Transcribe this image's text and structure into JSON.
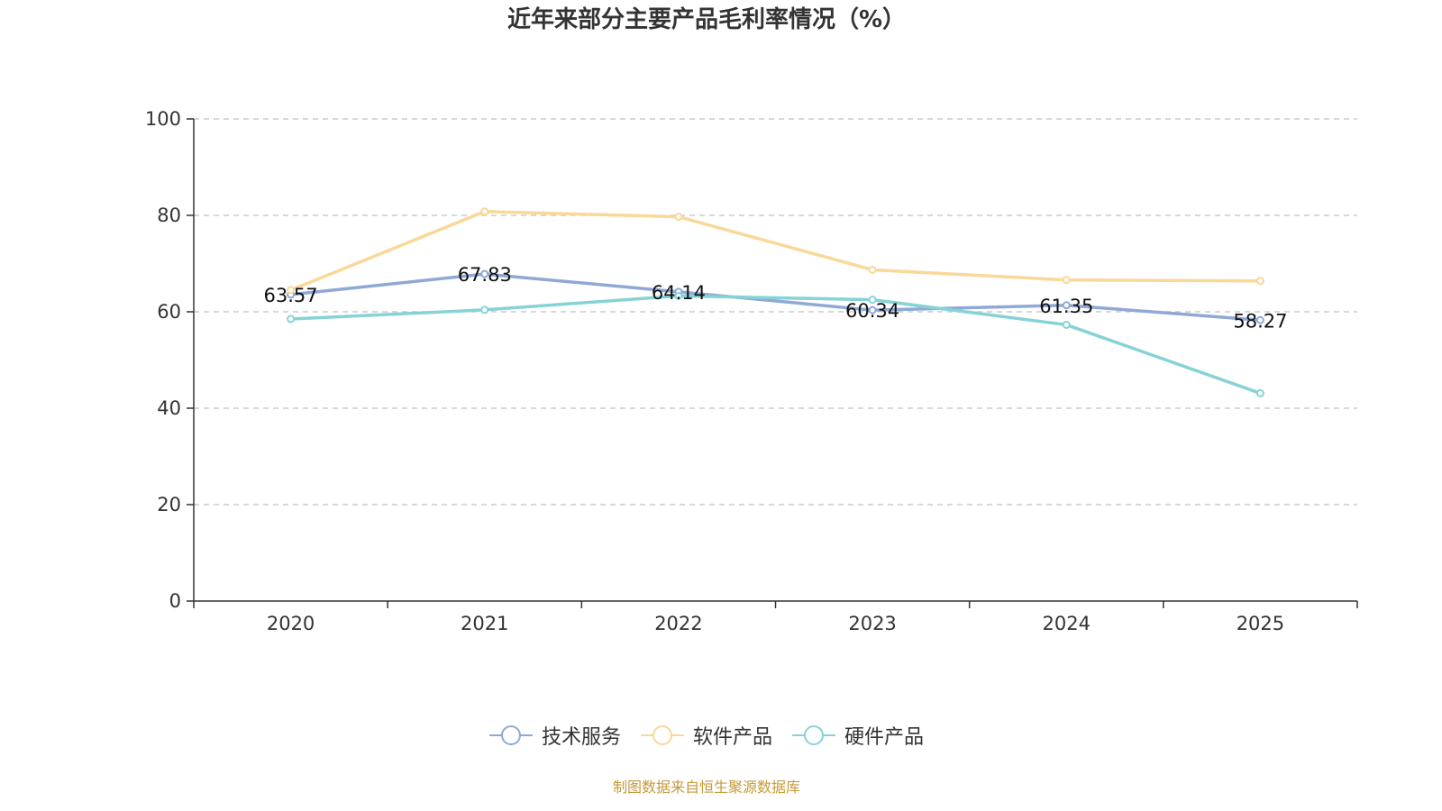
{
  "chart_data": {
    "type": "line",
    "title": "近年来部分主要产品毛利率情况（%）",
    "categories": [
      "2020",
      "2021",
      "2022",
      "2023",
      "2024",
      "2025"
    ],
    "ylim": [
      0,
      100
    ],
    "yticks": [
      0,
      20,
      40,
      60,
      80,
      100
    ],
    "grid": true,
    "legend_position": "bottom",
    "series": [
      {
        "name": "技术服务",
        "color": "#8fa8d6",
        "values": [
          63.57,
          67.83,
          64.14,
          60.34,
          61.35,
          58.27
        ],
        "labels": [
          "63.57",
          "67.83",
          "64.14",
          "60.34",
          "61.35",
          "58.27"
        ]
      },
      {
        "name": "软件产品",
        "color": "#f9d898",
        "values": [
          64.5,
          80.8,
          79.7,
          68.7,
          66.6,
          66.4
        ]
      },
      {
        "name": "硬件产品",
        "color": "#86d3d6",
        "values": [
          58.5,
          60.4,
          63.3,
          62.5,
          57.3,
          43.1
        ]
      }
    ]
  },
  "source": "制图数据来自恒生聚源数据库"
}
